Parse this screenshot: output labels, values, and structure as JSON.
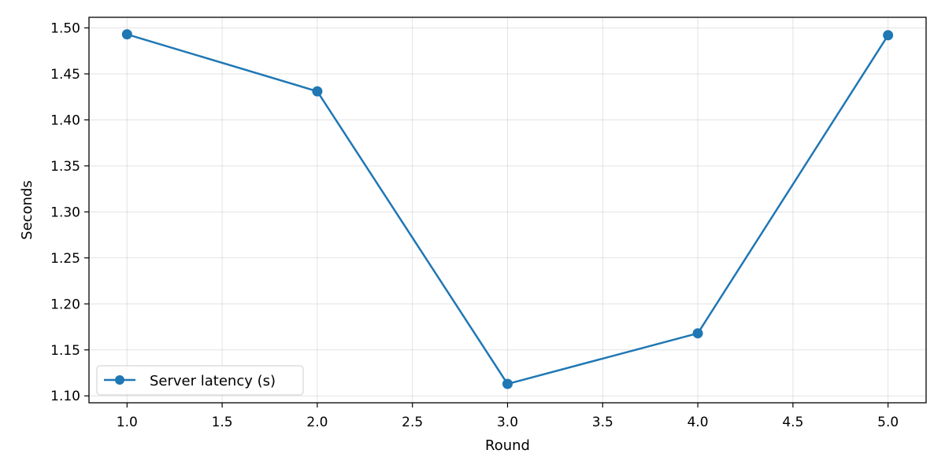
{
  "chart_data": {
    "type": "line",
    "title": "",
    "xlabel": "Round",
    "ylabel": "Seconds",
    "xlim": [
      0.8,
      5.2
    ],
    "ylim": [
      1.0925,
      1.5115
    ],
    "xticks": [
      "1.0",
      "1.5",
      "2.0",
      "2.5",
      "3.0",
      "3.5",
      "4.0",
      "4.5",
      "5.0"
    ],
    "yticks": [
      "1.10",
      "1.15",
      "1.20",
      "1.25",
      "1.30",
      "1.35",
      "1.40",
      "1.45",
      "1.50"
    ],
    "grid": true,
    "legend_position": "lower-left",
    "series": [
      {
        "name": "Server latency (s)",
        "color": "#1f77b4",
        "marker": "circle",
        "x": [
          1,
          2,
          3,
          4,
          5
        ],
        "y": [
          1.493,
          1.431,
          1.113,
          1.168,
          1.492
        ]
      }
    ]
  }
}
